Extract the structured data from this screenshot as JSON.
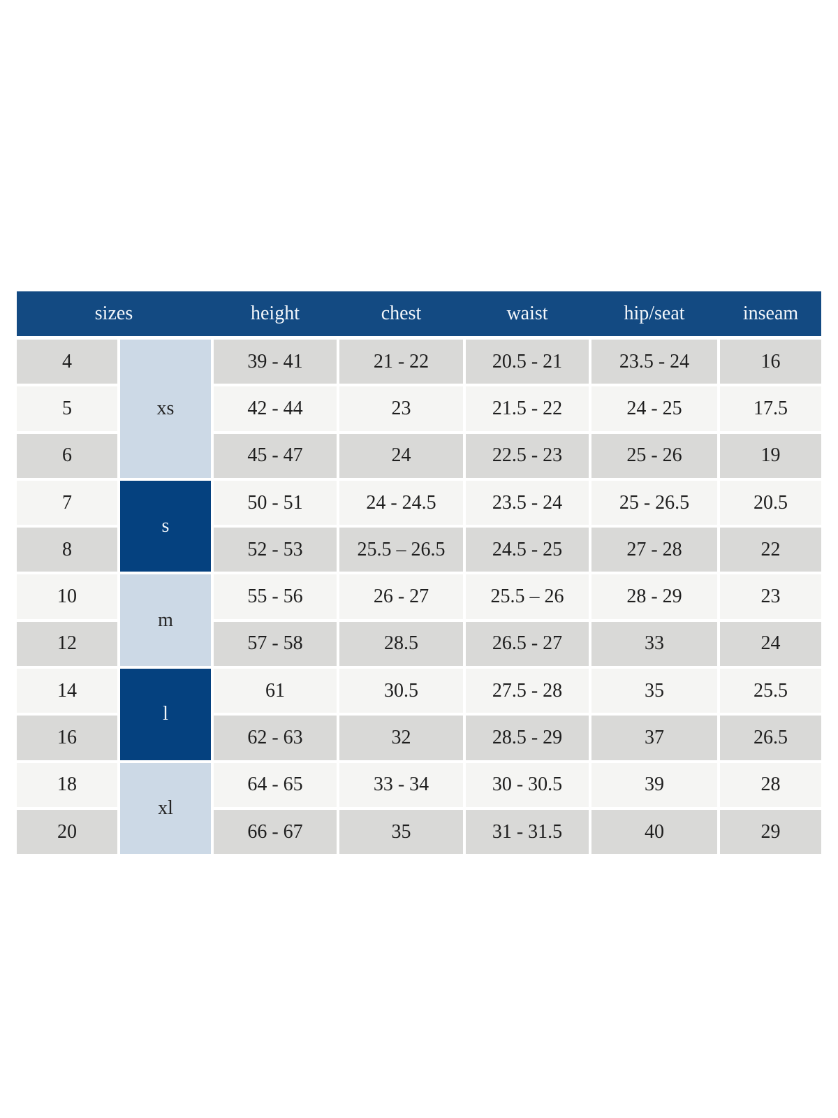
{
  "colors": {
    "header_bg": "#134a82",
    "header_text": "#f3f7fb",
    "group_light_bg": "#ccd9e6",
    "group_dark_bg": "#05417f",
    "row_dark_bg": "#d9d9d7",
    "row_light_bg": "#f5f5f3",
    "cell_text": "#1e1e1e",
    "gutter": "#ffffff"
  },
  "chart_data": {
    "type": "table",
    "columns": [
      "sizes",
      "height",
      "chest",
      "waist",
      "hip/seat",
      "inseam"
    ],
    "size_groups": [
      {
        "label": "xs",
        "sizes": [
          "4",
          "5",
          "6"
        ]
      },
      {
        "label": "s",
        "sizes": [
          "7",
          "8"
        ]
      },
      {
        "label": "m",
        "sizes": [
          "10",
          "12"
        ]
      },
      {
        "label": "l",
        "sizes": [
          "14",
          "16"
        ]
      },
      {
        "label": "xl",
        "sizes": [
          "18",
          "20"
        ]
      }
    ],
    "rows": [
      [
        "4",
        "39 - 41",
        "21 - 22",
        "20.5 - 21",
        "23.5 - 24",
        "16"
      ],
      [
        "5",
        "42 - 44",
        "23",
        "21.5 - 22",
        "24 - 25",
        "17.5"
      ],
      [
        "6",
        "45 - 47",
        "24",
        "22.5 - 23",
        "25 - 26",
        "19"
      ],
      [
        "7",
        "50 - 51",
        "24 - 24.5",
        "23.5 - 24",
        "25 - 26.5",
        "20.5"
      ],
      [
        "8",
        "52 - 53",
        "25.5 – 26.5",
        "24.5 - 25",
        "27 - 28",
        "22"
      ],
      [
        "10",
        "55 - 56",
        "26 - 27",
        "25.5 – 26",
        "28 - 29",
        "23"
      ],
      [
        "12",
        "57 - 58",
        "28.5",
        "26.5 - 27",
        "33",
        "24"
      ],
      [
        "14",
        "61",
        "30.5",
        "27.5 - 28",
        "35",
        "25.5"
      ],
      [
        "16",
        "62 - 63",
        "32",
        "28.5 - 29",
        "37",
        "26.5"
      ],
      [
        "18",
        "64 - 65",
        "33 - 34",
        "30 - 30.5",
        "39",
        "28"
      ],
      [
        "20",
        "66 - 67",
        "35",
        "31 - 31.5",
        "40",
        "29"
      ]
    ]
  }
}
